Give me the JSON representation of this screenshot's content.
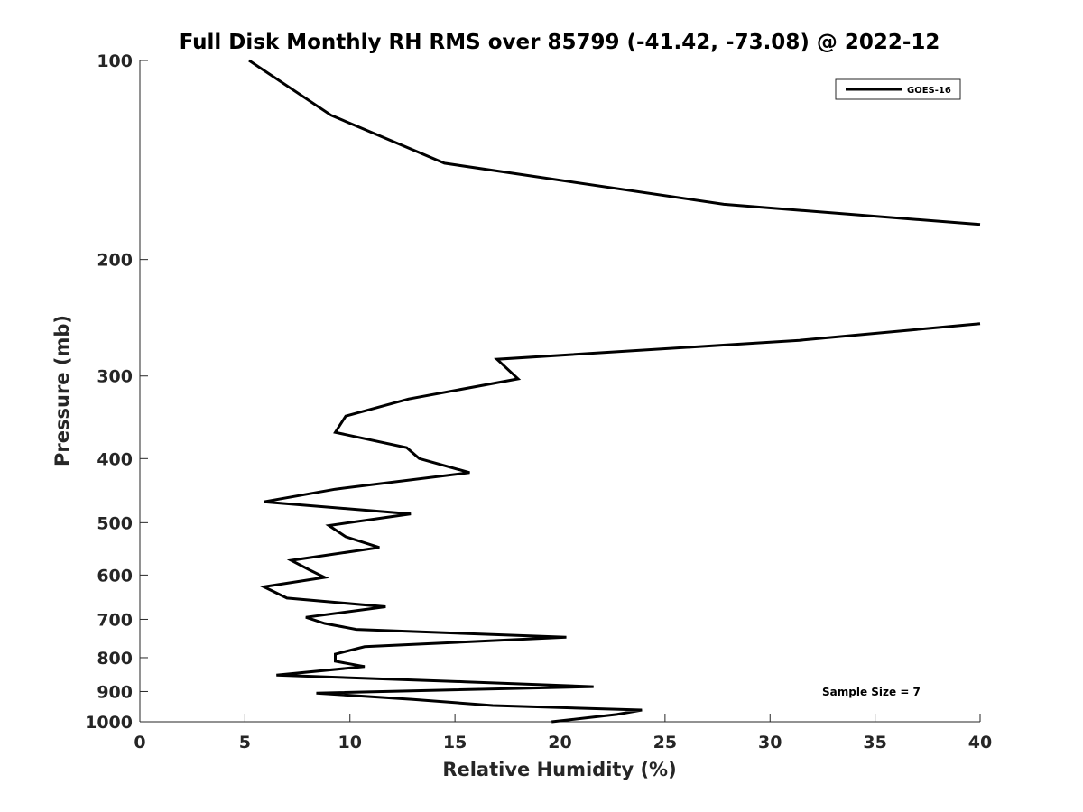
{
  "chart_data": {
    "type": "line",
    "title": "Full Disk Monthly RH RMS over 85799 (-41.42, -73.08) @ 2022-12",
    "xlabel": "Relative Humidity (%)",
    "ylabel": "Pressure (mb)",
    "xlim": [
      0,
      40
    ],
    "ylim": [
      100,
      1000
    ],
    "y_scale": "log",
    "y_reversed": true,
    "x_ticks": [
      "0",
      "5",
      "10",
      "15",
      "20",
      "25",
      "30",
      "35",
      "40"
    ],
    "y_ticks": [
      "100",
      "200",
      "300",
      "400",
      "500",
      "600",
      "700",
      "800",
      "900",
      "1000"
    ],
    "grid": false,
    "legend_position": "top-right",
    "series": [
      {
        "name": "GOES-16",
        "color": "#000000",
        "segments": [
          [
            {
              "x": 5.2,
              "p": 100
            },
            {
              "x": 9.1,
              "p": 121
            },
            {
              "x": 14.5,
              "p": 143
            },
            {
              "x": 27.8,
              "p": 165
            },
            {
              "x": 40.0,
              "p": 177
            }
          ],
          [
            {
              "x": 40.0,
              "p": 250
            },
            {
              "x": 31.4,
              "p": 265
            },
            {
              "x": 17.0,
              "p": 283
            },
            {
              "x": 18.0,
              "p": 303
            },
            {
              "x": 12.8,
              "p": 325
            },
            {
              "x": 9.8,
              "p": 345
            },
            {
              "x": 9.3,
              "p": 365
            },
            {
              "x": 12.7,
              "p": 385
            },
            {
              "x": 13.3,
              "p": 400
            },
            {
              "x": 15.7,
              "p": 420
            },
            {
              "x": 9.3,
              "p": 445
            },
            {
              "x": 5.9,
              "p": 465
            },
            {
              "x": 12.9,
              "p": 485
            },
            {
              "x": 9.0,
              "p": 505
            },
            {
              "x": 9.8,
              "p": 525
            },
            {
              "x": 11.4,
              "p": 545
            },
            {
              "x": 7.2,
              "p": 570
            },
            {
              "x": 8.1,
              "p": 590
            },
            {
              "x": 8.8,
              "p": 605
            },
            {
              "x": 5.9,
              "p": 625
            },
            {
              "x": 7.0,
              "p": 650
            },
            {
              "x": 11.7,
              "p": 670
            },
            {
              "x": 7.9,
              "p": 695
            },
            {
              "x": 8.8,
              "p": 710
            },
            {
              "x": 10.3,
              "p": 725
            },
            {
              "x": 20.3,
              "p": 745
            },
            {
              "x": 10.7,
              "p": 770
            },
            {
              "x": 9.3,
              "p": 790
            },
            {
              "x": 9.3,
              "p": 810
            },
            {
              "x": 10.7,
              "p": 825
            },
            {
              "x": 6.5,
              "p": 850
            },
            {
              "x": 15.5,
              "p": 870
            },
            {
              "x": 21.6,
              "p": 885
            },
            {
              "x": 8.4,
              "p": 905
            },
            {
              "x": 13.0,
              "p": 925
            },
            {
              "x": 16.8,
              "p": 945
            },
            {
              "x": 23.9,
              "p": 960
            },
            {
              "x": 22.7,
              "p": 975
            },
            {
              "x": 19.6,
              "p": 1000
            }
          ]
        ]
      }
    ],
    "annotations": [
      "Sample Size = 7"
    ]
  }
}
